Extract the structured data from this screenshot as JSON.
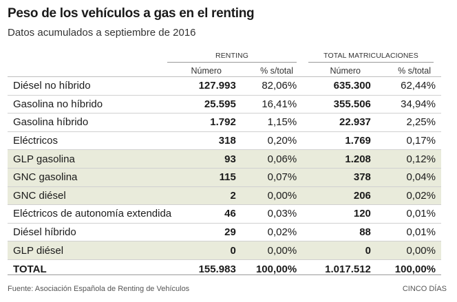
{
  "title": "Peso de los vehículos a gas en el renting",
  "subtitle": "Datos acumulados a septiembre de 2016",
  "groups": {
    "renting": "RENTING",
    "total": "TOTAL MATRICULACIONES"
  },
  "columns": {
    "numero": "Número",
    "pct": "% s/total"
  },
  "rows": [
    {
      "label": "Diésel no híbrido",
      "r_num": "127.993",
      "r_pct": "82,06%",
      "t_num": "635.300",
      "t_pct": "62,44%"
    },
    {
      "label": "Gasolina no híbrido",
      "r_num": "25.595",
      "r_pct": "16,41%",
      "t_num": "355.506",
      "t_pct": "34,94%"
    },
    {
      "label": "Gasolina híbrido",
      "r_num": "1.792",
      "r_pct": "1,15%",
      "t_num": "22.937",
      "t_pct": "2,25%"
    },
    {
      "label": "Eléctricos",
      "r_num": "318",
      "r_pct": "0,20%",
      "t_num": "1.769",
      "t_pct": "0,17%"
    },
    {
      "label": "GLP gasolina",
      "r_num": "93",
      "r_pct": "0,06%",
      "t_num": "1.208",
      "t_pct": "0,12%"
    },
    {
      "label": "GNC gasolina",
      "r_num": "115",
      "r_pct": "0,07%",
      "t_num": "378",
      "t_pct": "0,04%"
    },
    {
      "label": "GNC diésel",
      "r_num": "2",
      "r_pct": "0,00%",
      "t_num": "206",
      "t_pct": "0,02%"
    },
    {
      "label": "Eléctricos de autonomía extendida",
      "r_num": "46",
      "r_pct": "0,03%",
      "t_num": "120",
      "t_pct": "0,01%"
    },
    {
      "label": "Diésel híbrido",
      "r_num": "29",
      "r_pct": "0,02%",
      "t_num": "88",
      "t_pct": "0,01%"
    },
    {
      "label": "GLP diésel",
      "r_num": "0",
      "r_pct": "0,00%",
      "t_num": "0",
      "t_pct": "0,00%"
    }
  ],
  "total": {
    "label": "TOTAL",
    "r_num": "155.983",
    "r_pct": "100,00%",
    "t_num": "1.017.512",
    "t_pct": "100,00%"
  },
  "source": "Fuente: Asociación Española de Renting de Vehículos",
  "credit": "CINCO DÍAS",
  "highlight_color": "#e9ebdb"
}
